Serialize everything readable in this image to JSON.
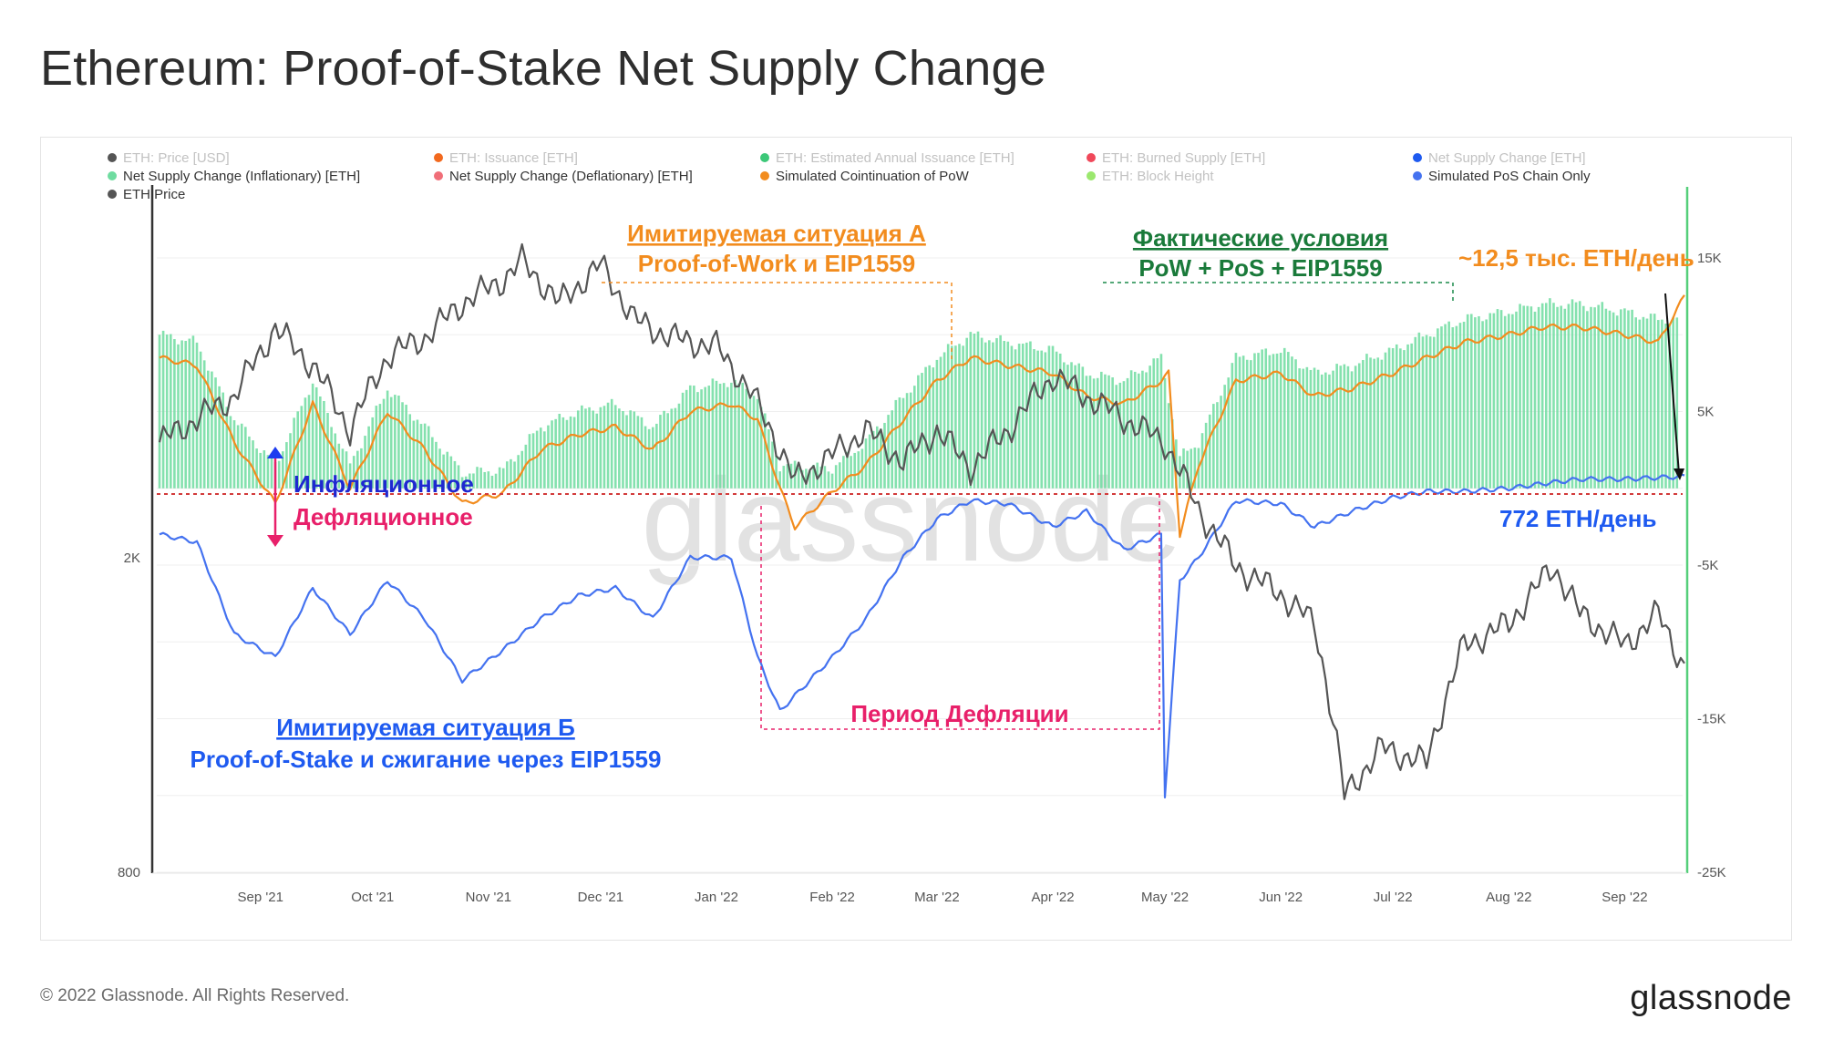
{
  "page": {
    "title": "Ethereum: Proof-of-Stake Net Supply Change",
    "copyright": "© 2022 Glassnode. All Rights Reserved.",
    "logo": "glassnode",
    "watermark": "glassnode"
  },
  "colors": {
    "inflation_bar": "#6fdca0",
    "pow_line": "#f28c1e",
    "pos_line": "#4472f0",
    "price_line": "#555555",
    "zero_line": "#d23a3a",
    "right_axis_line": "#55cf7a"
  },
  "chart_data": {
    "type": "line",
    "legend": [
      {
        "label": "ETH: Price [USD]",
        "color": "#555555",
        "active": false
      },
      {
        "label": "ETH: Issuance [ETH]",
        "color": "#f2691e",
        "active": false
      },
      {
        "label": "ETH: Estimated Annual Issuance [ETH]",
        "color": "#3cc878",
        "active": false
      },
      {
        "label": "ETH: Burned Supply [ETH]",
        "color": "#f0485a",
        "active": false
      },
      {
        "label": "Net Supply Change [ETH]",
        "color": "#1e5af0",
        "active": false
      },
      {
        "label": "Net Supply Change (Inflationary) [ETH]",
        "color": "#6fdca0",
        "active": true
      },
      {
        "label": "Net Supply Change (Deflationary) [ETH]",
        "color": "#f06e78",
        "active": true
      },
      {
        "label": "Simulated Cointinuation of PoW",
        "color": "#f28c1e",
        "active": true
      },
      {
        "label": "ETH: Block Height",
        "color": "#9be86e",
        "active": false
      },
      {
        "label": "Simulated PoS Chain Only",
        "color": "#4472f0",
        "active": true
      },
      {
        "label": "ETH Price",
        "color": "#555555",
        "active": true
      }
    ],
    "x_labels": [
      "Sep '21",
      "Oct '21",
      "Nov '21",
      "Dec '21",
      "Jan '22",
      "Feb '22",
      "Mar '22",
      "Apr '22",
      "May '22",
      "Jun '22",
      "Jul '22",
      "Aug '22",
      "Sep '22"
    ],
    "x_label_dates": [
      "2021-09-01",
      "2021-10-01",
      "2021-11-01",
      "2021-12-01",
      "2022-01-01",
      "2022-02-01",
      "2022-03-01",
      "2022-04-01",
      "2022-05-01",
      "2022-06-01",
      "2022-07-01",
      "2022-08-01",
      "2022-09-01"
    ],
    "x_range": [
      "2021-08-05",
      "2022-09-17"
    ],
    "left_axis": {
      "label_ticks": [
        "800",
        "2K"
      ],
      "scale": "log",
      "range_usd": [
        800,
        5500
      ]
    },
    "right_axis": {
      "label_ticks": [
        "15K",
        "5K",
        "-5K",
        "-15K",
        "-25K"
      ],
      "range": [
        -25000,
        20000
      ]
    },
    "series": [
      {
        "name": "Simulated Cointinuation of PoW",
        "dates": [
          "2021-08-05",
          "2021-08-15",
          "2021-08-25",
          "2021-09-05",
          "2021-09-15",
          "2021-09-25",
          "2021-10-05",
          "2021-10-15",
          "2021-10-25",
          "2021-11-05",
          "2021-11-15",
          "2021-11-25",
          "2021-12-05",
          "2021-12-15",
          "2021-12-25",
          "2022-01-05",
          "2022-01-12",
          "2022-01-18",
          "2022-01-22",
          "2022-02-01",
          "2022-02-10",
          "2022-02-20",
          "2022-03-01",
          "2022-03-10",
          "2022-03-20",
          "2022-04-01",
          "2022-04-10",
          "2022-04-20",
          "2022-04-30",
          "2022-05-02",
          "2022-05-05",
          "2022-05-10",
          "2022-05-20",
          "2022-06-01",
          "2022-06-10",
          "2022-06-20",
          "2022-07-01",
          "2022-07-10",
          "2022-07-20",
          "2022-08-01",
          "2022-08-10",
          "2022-08-20",
          "2022-09-01",
          "2022-09-10",
          "2022-09-17"
        ],
        "values": [
          8500,
          8000,
          3000,
          -1000,
          5500,
          0,
          5000,
          2500,
          -1000,
          -300,
          2500,
          3500,
          4000,
          2500,
          5000,
          5500,
          4500,
          0,
          -2500,
          -200,
          1500,
          4500,
          7000,
          8500,
          8000,
          7500,
          6000,
          5500,
          7000,
          7500,
          -3000,
          1500,
          7000,
          7500,
          6000,
          6500,
          7500,
          8500,
          9500,
          10000,
          10500,
          10500,
          10000,
          9500,
          12500
        ]
      },
      {
        "name": "Simulated PoS Chain Only",
        "dates": [
          "2021-08-05",
          "2021-08-15",
          "2021-08-25",
          "2021-09-05",
          "2021-09-15",
          "2021-09-25",
          "2021-10-05",
          "2021-10-15",
          "2021-10-25",
          "2021-11-05",
          "2021-11-15",
          "2021-11-25",
          "2021-12-05",
          "2021-12-15",
          "2021-12-25",
          "2022-01-05",
          "2022-01-12",
          "2022-01-18",
          "2022-02-01",
          "2022-02-10",
          "2022-02-20",
          "2022-03-01",
          "2022-03-10",
          "2022-03-20",
          "2022-04-01",
          "2022-04-10",
          "2022-04-20",
          "2022-04-30",
          "2022-05-01",
          "2022-05-05",
          "2022-05-10",
          "2022-05-20",
          "2022-06-01",
          "2022-06-10",
          "2022-06-20",
          "2022-07-01",
          "2022-07-10",
          "2022-07-20",
          "2022-08-01",
          "2022-08-10",
          "2022-08-20",
          "2022-09-01",
          "2022-09-10",
          "2022-09-17"
        ],
        "values": [
          -3000,
          -3500,
          -9500,
          -11000,
          -6500,
          -9500,
          -6000,
          -8500,
          -12500,
          -10500,
          -8500,
          -7000,
          -6500,
          -8500,
          -4500,
          -4500,
          -11000,
          -14500,
          -11000,
          -8500,
          -4500,
          -2000,
          -800,
          -1000,
          -2500,
          -1500,
          -4000,
          -3000,
          -20000,
          -6000,
          -4500,
          -800,
          -1000,
          -2500,
          -1500,
          -600,
          -200,
          -200,
          0,
          300,
          600,
          600,
          700,
          772
        ]
      },
      {
        "name": "ETH Price",
        "dates": [
          "2021-08-05",
          "2021-08-15",
          "2021-08-25",
          "2021-09-05",
          "2021-09-15",
          "2021-09-25",
          "2021-10-05",
          "2021-10-15",
          "2021-10-25",
          "2021-11-05",
          "2021-11-10",
          "2021-11-20",
          "2021-12-01",
          "2021-12-10",
          "2021-12-20",
          "2022-01-01",
          "2022-01-10",
          "2022-01-22",
          "2022-02-01",
          "2022-02-10",
          "2022-02-20",
          "2022-03-01",
          "2022-03-10",
          "2022-03-20",
          "2022-04-01",
          "2022-04-10",
          "2022-04-20",
          "2022-05-01",
          "2022-05-10",
          "2022-05-20",
          "2022-06-01",
          "2022-06-10",
          "2022-06-18",
          "2022-06-28",
          "2022-07-10",
          "2022-07-20",
          "2022-08-01",
          "2022-08-13",
          "2022-08-20",
          "2022-09-01",
          "2022-09-10",
          "2022-09-17"
        ],
        "values": [
          2800,
          3000,
          3200,
          3900,
          3500,
          2900,
          3600,
          3800,
          4200,
          4500,
          4750,
          4200,
          4700,
          4000,
          3800,
          3700,
          3250,
          2500,
          2700,
          2900,
          2650,
          2900,
          2600,
          2900,
          3400,
          3200,
          3000,
          2800,
          2300,
          1950,
          1800,
          1650,
          1000,
          1150,
          1100,
          1550,
          1650,
          1950,
          1700,
          1550,
          1700,
          1450
        ]
      },
      {
        "name": "Net Supply Change (Inflationary) [ETH]",
        "type": "bar",
        "dates": [
          "2021-08-05",
          "2021-08-15",
          "2021-08-25",
          "2021-09-05",
          "2021-09-15",
          "2021-09-25",
          "2021-10-05",
          "2021-10-15",
          "2021-10-25",
          "2021-11-05",
          "2021-11-15",
          "2021-11-25",
          "2021-12-05",
          "2021-12-15",
          "2021-12-25",
          "2022-01-05",
          "2022-01-12",
          "2022-01-18",
          "2022-02-01",
          "2022-02-10",
          "2022-02-20",
          "2022-03-01",
          "2022-03-10",
          "2022-03-20",
          "2022-04-01",
          "2022-04-10",
          "2022-04-20",
          "2022-04-30",
          "2022-05-05",
          "2022-05-10",
          "2022-05-20",
          "2022-06-01",
          "2022-06-10",
          "2022-06-20",
          "2022-07-01",
          "2022-07-10",
          "2022-07-20",
          "2022-08-01",
          "2022-08-10",
          "2022-08-20",
          "2022-09-01",
          "2022-09-10",
          "2022-09-15"
        ],
        "values": [
          10000,
          9500,
          4500,
          1500,
          7000,
          1500,
          6500,
          4000,
          1000,
          1200,
          4000,
          5000,
          5500,
          4000,
          6500,
          7000,
          6000,
          1500,
          1300,
          3000,
          6000,
          8500,
          10000,
          9500,
          9000,
          7500,
          7000,
          8500,
          2000,
          3000,
          8500,
          9000,
          7500,
          8000,
          9000,
          10000,
          11000,
          11500,
          12000,
          12000,
          11500,
          11000,
          11000
        ]
      }
    ],
    "annotations": {
      "scenario_a_line1": "Имитируемая ситуация А",
      "scenario_a_line2": "Proof-of-Work и EIP1559",
      "actual_line1": "Фактические условия",
      "actual_line2": "PoW + PoS + EIP1559",
      "pow_rate": "~12,5 тыс. ETH/день",
      "inflationary": "Инфляционное",
      "deflationary": "Дефляционное",
      "deflation_period": "Период Дефляции",
      "pos_rate": "772 ETH/день",
      "scenario_b_line1": "Имитируемая ситуация Б",
      "scenario_b_line2": "Proof-of-Stake и сжигание через EIP1559"
    }
  }
}
